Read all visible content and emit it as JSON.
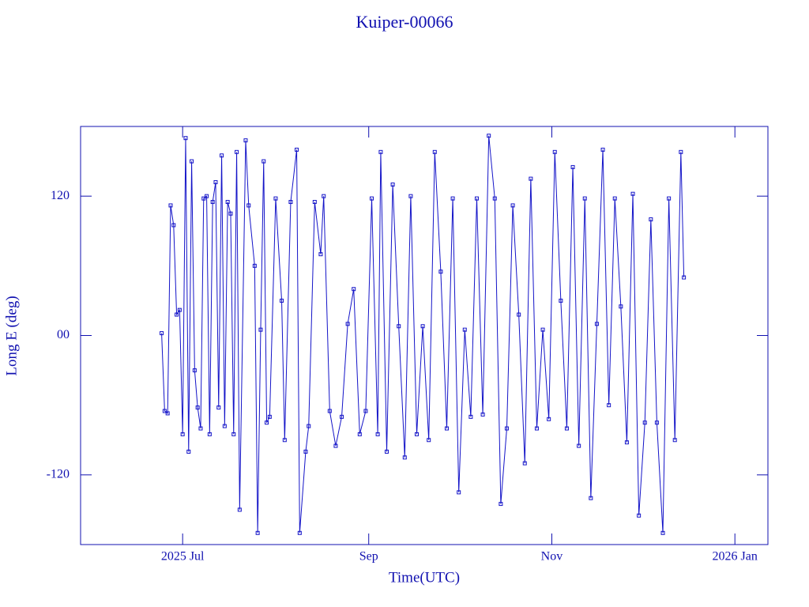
{
  "chart_data": {
    "type": "line",
    "title": "Kuiper-00066",
    "x_label": "Time(UTC)",
    "y_label": "Long E (deg)",
    "color": "#1414c8",
    "marker": "square",
    "xlim": [
      -34,
      195
    ],
    "xticks": [
      {
        "value": 0,
        "label": "2025 Jul"
      },
      {
        "value": 62,
        "label": "Sep"
      },
      {
        "value": 123,
        "label": "Nov"
      },
      {
        "value": 184,
        "label": "2026 Jan"
      }
    ],
    "ylim": [
      -180,
      180
    ],
    "yticks": [
      {
        "value": -120,
        "label": "-120"
      },
      {
        "value": 0,
        "label": "00"
      },
      {
        "value": 120,
        "label": "120"
      }
    ],
    "x": [
      -7,
      -6,
      -5,
      -4,
      -3,
      -2,
      -1,
      0,
      1,
      2,
      3,
      4,
      5,
      6,
      7,
      8,
      9,
      10,
      11,
      12,
      13,
      14,
      15,
      16,
      17,
      18,
      19,
      21,
      22,
      24,
      25,
      26,
      27,
      28,
      29,
      31,
      33,
      34,
      36,
      38,
      39,
      41,
      42,
      44,
      46,
      47,
      49,
      51,
      53,
      55,
      57,
      59,
      61,
      63,
      65,
      66,
      68,
      70,
      72,
      74,
      76,
      78,
      80,
      82,
      84,
      86,
      88,
      90,
      92,
      94,
      96,
      98,
      100,
      102,
      104,
      106,
      108,
      110,
      112,
      114,
      116,
      118,
      120,
      122,
      124,
      126,
      128,
      130,
      132,
      134,
      136,
      138,
      140,
      142,
      144,
      146,
      148,
      150,
      152,
      154,
      156,
      158,
      160,
      162,
      164,
      166,
      167
    ],
    "values": [
      2,
      -65,
      -67,
      112,
      95,
      18,
      22,
      -85,
      170,
      -100,
      150,
      -30,
      -62,
      -80,
      118,
      120,
      -85,
      115,
      132,
      -62,
      155,
      -78,
      115,
      105,
      -85,
      158,
      -150,
      168,
      112,
      60,
      -170,
      5,
      150,
      -75,
      -70,
      118,
      30,
      -90,
      115,
      160,
      -170,
      -100,
      -78,
      115,
      70,
      120,
      -65,
      -95,
      -70,
      10,
      40,
      -85,
      -65,
      118,
      -85,
      158,
      -100,
      130,
      8,
      -105,
      120,
      -85,
      8,
      -90,
      158,
      55,
      -80,
      118,
      -135,
      5,
      -70,
      118,
      -68,
      172,
      118,
      -145,
      -80,
      112,
      18,
      -110,
      135,
      -80,
      5,
      -72,
      158,
      30,
      -80,
      145,
      -95,
      118,
      -140,
      10,
      160,
      -60,
      118,
      25,
      -92,
      122,
      -155,
      -75,
      100,
      -75,
      -170,
      118,
      -90,
      158,
      50
    ]
  }
}
